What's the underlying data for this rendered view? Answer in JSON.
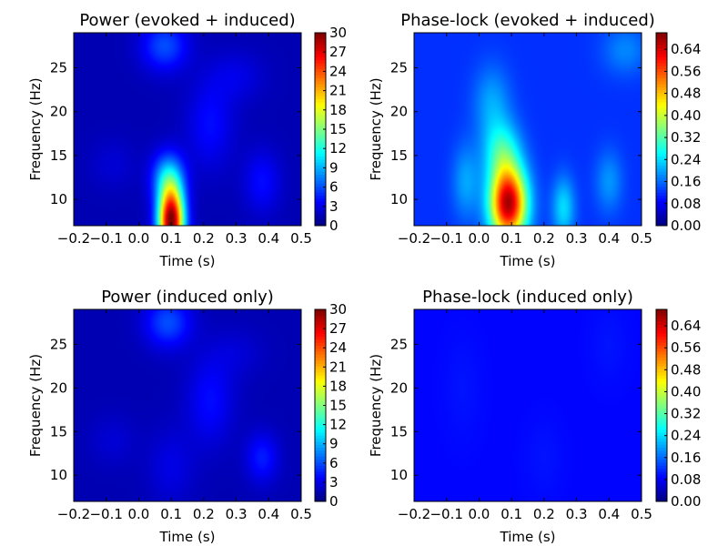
{
  "chart_data": [
    {
      "type": "heatmap",
      "title": "Power (evoked + induced)",
      "xlabel": "Time (s)",
      "ylabel": "Frequency (Hz)",
      "xlim": [
        -0.2,
        0.5
      ],
      "ylim": [
        7,
        29
      ],
      "xticks": [
        -0.2,
        -0.1,
        0.0,
        0.1,
        0.2,
        0.3,
        0.4,
        0.5
      ],
      "xtick_labels": [
        "−0.2",
        "−0.1",
        "0.0",
        "0.1",
        "0.2",
        "0.3",
        "0.4",
        "0.5"
      ],
      "yticks": [
        10,
        15,
        20,
        25
      ],
      "ytick_labels": [
        "10",
        "15",
        "20",
        "25"
      ],
      "colorbar": {
        "range": [
          0,
          30
        ],
        "ticks": [
          0,
          3,
          6,
          9,
          12,
          15,
          18,
          21,
          24,
          27,
          30
        ],
        "tick_labels": [
          "0",
          "3",
          "6",
          "9",
          "12",
          "15",
          "18",
          "21",
          "24",
          "27",
          "30"
        ],
        "colormap": "jet"
      },
      "background_value": 1.5,
      "blobs": [
        {
          "t": 0.1,
          "f": 7.5,
          "st": 0.028,
          "sf": 2.8,
          "v": 29
        },
        {
          "t": 0.09,
          "f": 12.5,
          "st": 0.035,
          "sf": 2.0,
          "v": 7
        },
        {
          "t": 0.08,
          "f": 27.5,
          "st": 0.05,
          "sf": 2.0,
          "v": 4.5
        },
        {
          "t": 0.22,
          "f": 18.5,
          "st": 0.05,
          "sf": 3.5,
          "v": 2.5
        },
        {
          "t": 0.38,
          "f": 12.0,
          "st": 0.04,
          "sf": 2.5,
          "v": 2.5
        },
        {
          "t": 0.3,
          "f": 24.0,
          "st": 0.06,
          "sf": 2.0,
          "v": 1.5
        },
        {
          "t": -0.08,
          "f": 14.0,
          "st": 0.05,
          "sf": 2.0,
          "v": 1.0
        }
      ]
    },
    {
      "type": "heatmap",
      "title": "Phase-lock (evoked + induced)",
      "xlabel": "Time (s)",
      "ylabel": "Frequency (Hz)",
      "xlim": [
        -0.2,
        0.5
      ],
      "ylim": [
        7,
        29
      ],
      "xticks": [
        -0.2,
        -0.1,
        0.0,
        0.1,
        0.2,
        0.3,
        0.4,
        0.5
      ],
      "xtick_labels": [
        "−0.2",
        "−0.1",
        "0.0",
        "0.1",
        "0.2",
        "0.3",
        "0.4",
        "0.5"
      ],
      "yticks": [
        10,
        15,
        20,
        25
      ],
      "ytick_labels": [
        "10",
        "15",
        "20",
        "25"
      ],
      "colorbar": {
        "range": [
          0,
          0.7
        ],
        "ticks": [
          0.0,
          0.08,
          0.16,
          0.24,
          0.32,
          0.4,
          0.48,
          0.56,
          0.64
        ],
        "tick_labels": [
          "0.00",
          "0.08",
          "0.16",
          "0.24",
          "0.32",
          "0.40",
          "0.48",
          "0.56",
          "0.64"
        ],
        "colormap": "jet"
      },
      "background_value": 0.12,
      "blobs": [
        {
          "t": 0.09,
          "f": 9.5,
          "st": 0.04,
          "sf": 3.0,
          "v": 0.55
        },
        {
          "t": 0.07,
          "f": 15.5,
          "st": 0.04,
          "sf": 2.5,
          "v": 0.15
        },
        {
          "t": 0.04,
          "f": 21.0,
          "st": 0.04,
          "sf": 3.0,
          "v": 0.08
        },
        {
          "t": 0.26,
          "f": 9.0,
          "st": 0.025,
          "sf": 2.5,
          "v": 0.12
        },
        {
          "t": -0.04,
          "f": 12.0,
          "st": 0.03,
          "sf": 3.0,
          "v": 0.08
        },
        {
          "t": 0.4,
          "f": 12.0,
          "st": 0.03,
          "sf": 2.5,
          "v": 0.07
        },
        {
          "t": 0.45,
          "f": 27.0,
          "st": 0.05,
          "sf": 2.0,
          "v": 0.06
        }
      ]
    },
    {
      "type": "heatmap",
      "title": "Power (induced only)",
      "xlabel": "Time (s)",
      "ylabel": "Frequency (Hz)",
      "xlim": [
        -0.2,
        0.5
      ],
      "ylim": [
        7,
        29
      ],
      "xticks": [
        -0.2,
        -0.1,
        0.0,
        0.1,
        0.2,
        0.3,
        0.4,
        0.5
      ],
      "xtick_labels": [
        "−0.2",
        "−0.1",
        "0.0",
        "0.1",
        "0.2",
        "0.3",
        "0.4",
        "0.5"
      ],
      "yticks": [
        10,
        15,
        20,
        25
      ],
      "ytick_labels": [
        "10",
        "15",
        "20",
        "25"
      ],
      "colorbar": {
        "range": [
          0,
          30
        ],
        "ticks": [
          0,
          3,
          6,
          9,
          12,
          15,
          18,
          21,
          24,
          27,
          30
        ],
        "tick_labels": [
          "0",
          "3",
          "6",
          "9",
          "12",
          "15",
          "18",
          "21",
          "24",
          "27",
          "30"
        ],
        "colormap": "jet"
      },
      "background_value": 1.5,
      "blobs": [
        {
          "t": 0.09,
          "f": 27.5,
          "st": 0.05,
          "sf": 2.0,
          "v": 4.5
        },
        {
          "t": 0.22,
          "f": 18.5,
          "st": 0.05,
          "sf": 3.5,
          "v": 2.5
        },
        {
          "t": 0.38,
          "f": 12.0,
          "st": 0.035,
          "sf": 2.0,
          "v": 3.0
        },
        {
          "t": 0.1,
          "f": 11.0,
          "st": 0.05,
          "sf": 3.0,
          "v": 1.5
        },
        {
          "t": -0.08,
          "f": 14.0,
          "st": 0.05,
          "sf": 2.0,
          "v": 1.0
        },
        {
          "t": 0.3,
          "f": 24.0,
          "st": 0.06,
          "sf": 2.0,
          "v": 1.0
        }
      ]
    },
    {
      "type": "heatmap",
      "title": "Phase-lock (induced only)",
      "xlabel": "Time (s)",
      "ylabel": "Frequency (Hz)",
      "xlim": [
        -0.2,
        0.5
      ],
      "ylim": [
        7,
        29
      ],
      "xticks": [
        -0.2,
        -0.1,
        0.0,
        0.1,
        0.2,
        0.3,
        0.4,
        0.5
      ],
      "xtick_labels": [
        "−0.2",
        "−0.1",
        "0.0",
        "0.1",
        "0.2",
        "0.3",
        "0.4",
        "0.5"
      ],
      "yticks": [
        10,
        15,
        20,
        25
      ],
      "ytick_labels": [
        "10",
        "15",
        "20",
        "25"
      ],
      "colorbar": {
        "range": [
          0,
          0.7
        ],
        "ticks": [
          0.0,
          0.08,
          0.16,
          0.24,
          0.32,
          0.4,
          0.48,
          0.56,
          0.64
        ],
        "tick_labels": [
          "0.00",
          "0.08",
          "0.16",
          "0.24",
          "0.32",
          "0.40",
          "0.48",
          "0.56",
          "0.64"
        ],
        "colormap": "jet"
      },
      "background_value": 0.09,
      "blobs": [
        {
          "t": -0.05,
          "f": 20.0,
          "st": 0.04,
          "sf": 4.0,
          "v": 0.01
        },
        {
          "t": 0.2,
          "f": 12.0,
          "st": 0.04,
          "sf": 3.0,
          "v": 0.01
        },
        {
          "t": 0.4,
          "f": 25.0,
          "st": 0.04,
          "sf": 3.0,
          "v": 0.01
        }
      ]
    }
  ]
}
